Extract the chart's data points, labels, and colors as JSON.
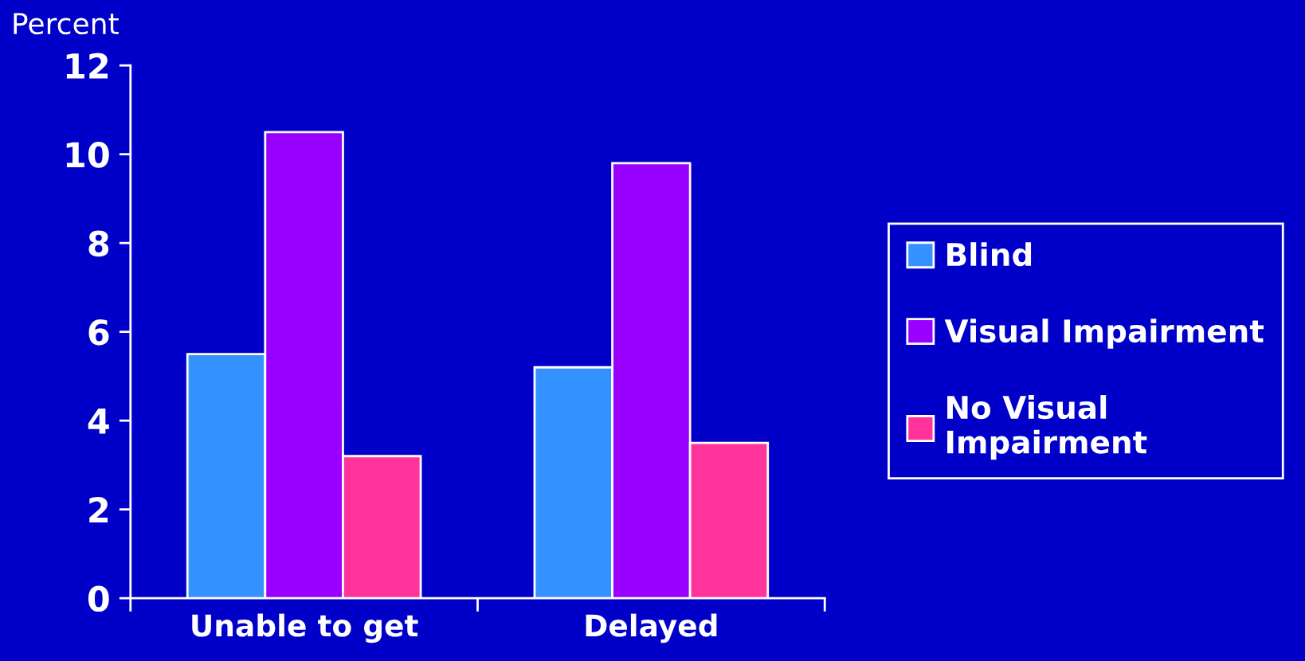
{
  "chart_data": {
    "type": "bar",
    "ylabel": "Percent",
    "categories": [
      "Unable to get",
      "Delayed"
    ],
    "series": [
      {
        "name": "Blind",
        "color": "#3392ff",
        "values": [
          5.5,
          5.2
        ]
      },
      {
        "name": "Visual Impairment",
        "color": "#9900ff",
        "values": [
          10.5,
          9.8
        ]
      },
      {
        "name": "No Visual\nImpairment",
        "color": "#ff3399",
        "values": [
          3.2,
          3.5
        ]
      }
    ],
    "ylim": [
      0,
      12
    ],
    "yticks": [
      0,
      2,
      4,
      6,
      8,
      10,
      12
    ],
    "legend": "right"
  }
}
